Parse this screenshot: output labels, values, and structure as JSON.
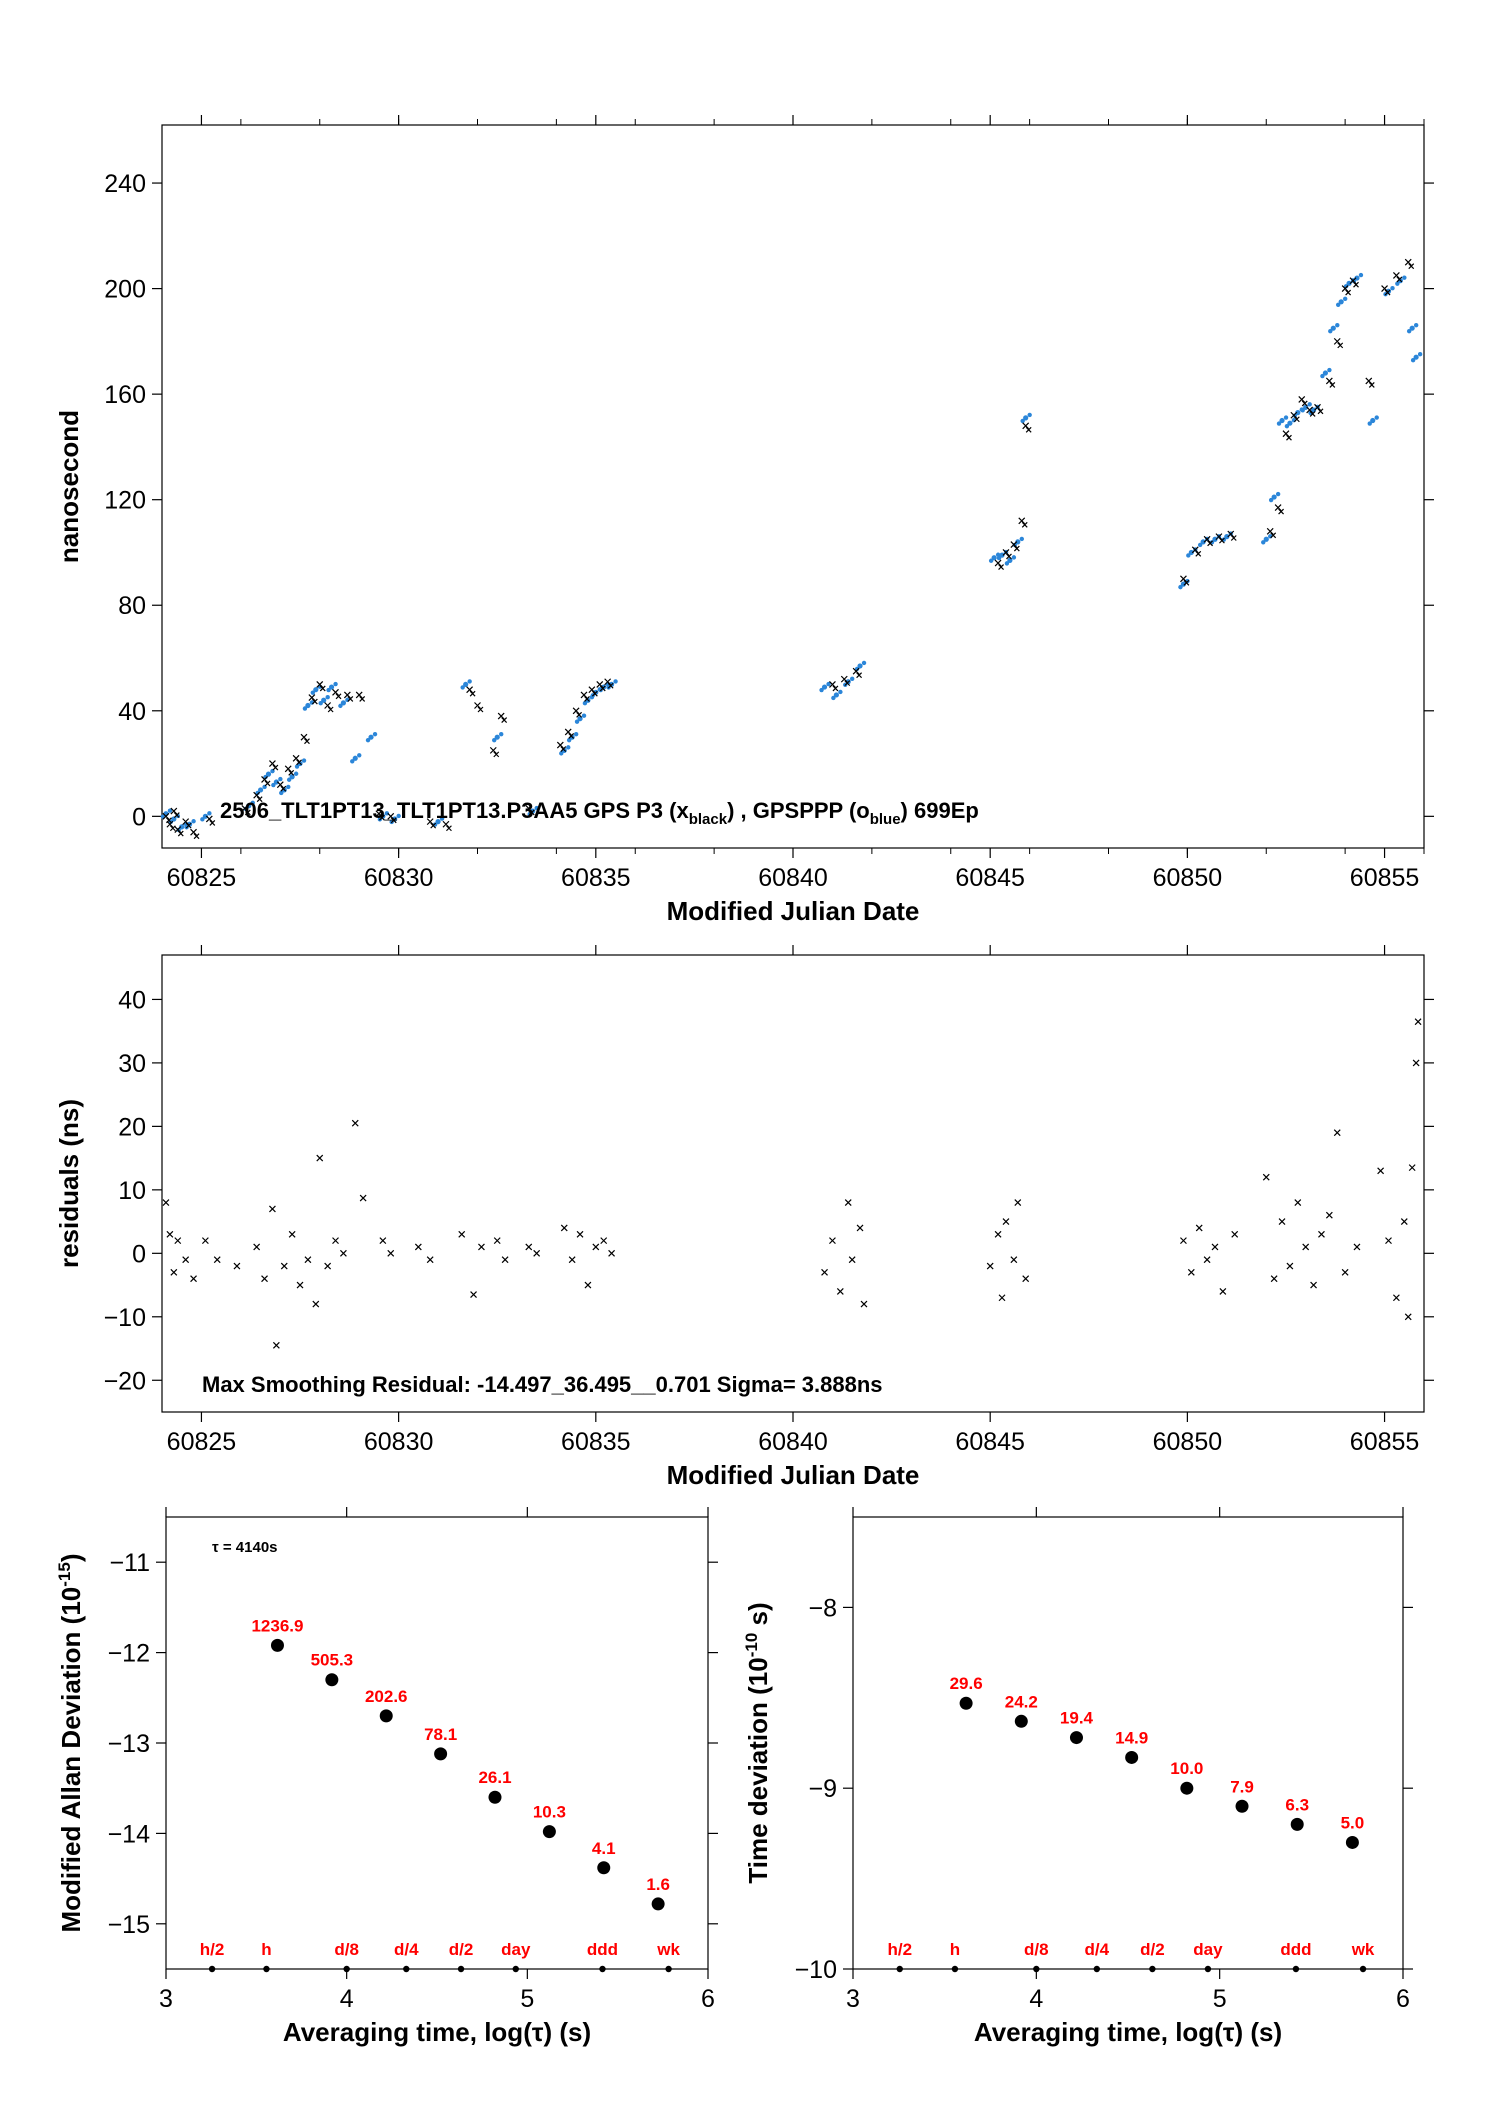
{
  "chart_data": [
    {
      "type": "scatter",
      "id": "top",
      "xlabel": "Modified Julian Date",
      "ylabel": "nanosecond",
      "xlim": [
        60824,
        60856
      ],
      "ylim": [
        -12,
        262
      ],
      "xticks": [
        60825,
        60830,
        60835,
        60840,
        60845,
        60850,
        60855
      ],
      "yticks": [
        0,
        40,
        80,
        120,
        160,
        200,
        240
      ],
      "annotation": {
        "prefix": "2506_TLT1PT13_TLT1PT13.P3AA5     GPS P3 (x",
        "sub1": "black",
        "mid": ") ,  GPSPPP (o",
        "sub2": "blue",
        "suffix": ")  699Ep"
      },
      "series": [
        {
          "name": "GPS P3",
          "marker": "x",
          "color": "#000000",
          "points": [
            [
              60824.1,
              0
            ],
            [
              60824.2,
              -3
            ],
            [
              60824.3,
              2
            ],
            [
              60824.4,
              -5
            ],
            [
              60824.6,
              -2
            ],
            [
              60824.8,
              -6
            ],
            [
              60825.2,
              -1
            ],
            [
              60826.1,
              3
            ],
            [
              60826.4,
              8
            ],
            [
              60826.6,
              14
            ],
            [
              60826.8,
              20
            ],
            [
              60827.0,
              12
            ],
            [
              60827.2,
              18
            ],
            [
              60827.4,
              22
            ],
            [
              60827.6,
              30
            ],
            [
              60827.8,
              45
            ],
            [
              60828.0,
              50
            ],
            [
              60828.2,
              42
            ],
            [
              60828.4,
              47
            ],
            [
              60828.7,
              46
            ],
            [
              60829.0,
              46
            ],
            [
              60829.5,
              1
            ],
            [
              60829.8,
              0
            ],
            [
              60830.8,
              -2
            ],
            [
              60831.2,
              -3
            ],
            [
              60831.8,
              48
            ],
            [
              60832.0,
              42
            ],
            [
              60832.4,
              25
            ],
            [
              60832.6,
              38
            ],
            [
              60833.3,
              3
            ],
            [
              60834.1,
              27
            ],
            [
              60834.3,
              32
            ],
            [
              60834.5,
              40
            ],
            [
              60834.7,
              46
            ],
            [
              60834.9,
              48
            ],
            [
              60835.1,
              50
            ],
            [
              60835.3,
              51
            ],
            [
              60841.0,
              50
            ],
            [
              60841.3,
              52
            ],
            [
              60841.6,
              55
            ],
            [
              60845.2,
              96
            ],
            [
              60845.4,
              100
            ],
            [
              60845.6,
              103
            ],
            [
              60845.8,
              112
            ],
            [
              60845.9,
              148
            ],
            [
              60849.9,
              90
            ],
            [
              60850.2,
              101
            ],
            [
              60850.5,
              105
            ],
            [
              60850.8,
              106
            ],
            [
              60851.1,
              107
            ],
            [
              60852.1,
              108
            ],
            [
              60852.3,
              117
            ],
            [
              60852.5,
              145
            ],
            [
              60852.7,
              152
            ],
            [
              60852.9,
              158
            ],
            [
              60853.1,
              154
            ],
            [
              60853.3,
              155
            ],
            [
              60853.6,
              165
            ],
            [
              60853.8,
              180
            ],
            [
              60854.0,
              200
            ],
            [
              60854.2,
              203
            ],
            [
              60854.6,
              165
            ],
            [
              60855.0,
              200
            ],
            [
              60855.3,
              205
            ],
            [
              60855.6,
              210
            ]
          ]
        },
        {
          "name": "GPSPPP",
          "marker": "o",
          "color": "#2b86d9",
          "points": [
            [
              60824.1,
              1
            ],
            [
              60824.3,
              -1
            ],
            [
              60824.5,
              -4
            ],
            [
              60824.7,
              -3
            ],
            [
              60825.1,
              0
            ],
            [
              60826.2,
              4
            ],
            [
              60826.5,
              10
            ],
            [
              60826.7,
              16
            ],
            [
              60826.9,
              13
            ],
            [
              60827.1,
              10
            ],
            [
              60827.3,
              15
            ],
            [
              60827.5,
              20
            ],
            [
              60827.7,
              42
            ],
            [
              60827.9,
              48
            ],
            [
              60828.1,
              44
            ],
            [
              60828.3,
              49
            ],
            [
              60828.6,
              43
            ],
            [
              60828.9,
              22
            ],
            [
              60829.3,
              30
            ],
            [
              60829.6,
              0
            ],
            [
              60829.9,
              -1
            ],
            [
              60831.0,
              -2
            ],
            [
              60831.7,
              50
            ],
            [
              60832.5,
              30
            ],
            [
              60833.4,
              2
            ],
            [
              60834.2,
              25
            ],
            [
              60834.4,
              30
            ],
            [
              60834.6,
              37
            ],
            [
              60834.8,
              44
            ],
            [
              60835.0,
              47
            ],
            [
              60835.2,
              49
            ],
            [
              60835.4,
              50
            ],
            [
              60840.8,
              49
            ],
            [
              60841.1,
              46
            ],
            [
              60841.4,
              51
            ],
            [
              60841.7,
              57
            ],
            [
              60845.1,
              98
            ],
            [
              60845.3,
              99
            ],
            [
              60845.5,
              97
            ],
            [
              60845.7,
              104
            ],
            [
              60845.9,
              151
            ],
            [
              60849.9,
              88
            ],
            [
              60850.1,
              100
            ],
            [
              60850.4,
              104
            ],
            [
              60850.7,
              105
            ],
            [
              60851.0,
              106
            ],
            [
              60852.0,
              105
            ],
            [
              60852.2,
              121
            ],
            [
              60852.4,
              150
            ],
            [
              60852.6,
              149
            ],
            [
              60852.8,
              153
            ],
            [
              60853.0,
              155
            ],
            [
              60853.2,
              154
            ],
            [
              60853.5,
              168
            ],
            [
              60853.7,
              185
            ],
            [
              60853.9,
              195
            ],
            [
              60854.1,
              202
            ],
            [
              60854.3,
              204
            ],
            [
              60854.7,
              150
            ],
            [
              60855.1,
              199
            ],
            [
              60855.4,
              203
            ],
            [
              60855.7,
              185
            ],
            [
              60855.8,
              174
            ]
          ]
        }
      ]
    },
    {
      "type": "scatter",
      "id": "middle",
      "xlabel": "Modified Julian Date",
      "ylabel": "residuals (ns)",
      "xlim": [
        60824,
        60856
      ],
      "ylim": [
        -25,
        47
      ],
      "xticks": [
        60825,
        60830,
        60835,
        60840,
        60845,
        60850,
        60855
      ],
      "yticks": [
        -20,
        -10,
        0,
        10,
        20,
        30,
        40
      ],
      "annotation": "Max Smoothing Residual: -14.497_36.495__0.701  Sigma= 3.888ns",
      "series": [
        {
          "name": "residuals",
          "marker": "x",
          "color": "#000000",
          "points": [
            [
              60824.1,
              8
            ],
            [
              60824.2,
              3
            ],
            [
              60824.3,
              -3
            ],
            [
              60824.4,
              2
            ],
            [
              60824.6,
              -1
            ],
            [
              60824.8,
              -4
            ],
            [
              60825.1,
              2
            ],
            [
              60825.4,
              -1
            ],
            [
              60825.9,
              -2
            ],
            [
              60826.4,
              1
            ],
            [
              60826.6,
              -4
            ],
            [
              60826.8,
              7
            ],
            [
              60826.9,
              -14.5
            ],
            [
              60827.1,
              -2
            ],
            [
              60827.3,
              3
            ],
            [
              60827.5,
              -5
            ],
            [
              60827.7,
              -1
            ],
            [
              60827.9,
              -8
            ],
            [
              60828.0,
              15
            ],
            [
              60828.2,
              -2
            ],
            [
              60828.4,
              2
            ],
            [
              60828.6,
              0
            ],
            [
              60828.9,
              20.5
            ],
            [
              60829.1,
              8.7
            ],
            [
              60829.6,
              2
            ],
            [
              60829.8,
              0
            ],
            [
              60830.5,
              1
            ],
            [
              60830.8,
              -1
            ],
            [
              60831.6,
              3
            ],
            [
              60831.9,
              -6.5
            ],
            [
              60832.1,
              1
            ],
            [
              60832.5,
              2
            ],
            [
              60832.7,
              -1
            ],
            [
              60833.3,
              1
            ],
            [
              60833.5,
              0
            ],
            [
              60834.2,
              4
            ],
            [
              60834.4,
              -1
            ],
            [
              60834.6,
              3
            ],
            [
              60834.8,
              -5
            ],
            [
              60835.0,
              1
            ],
            [
              60835.2,
              2
            ],
            [
              60835.4,
              0
            ],
            [
              60840.8,
              -3
            ],
            [
              60841.0,
              2
            ],
            [
              60841.2,
              -6
            ],
            [
              60841.4,
              8
            ],
            [
              60841.5,
              -1
            ],
            [
              60841.7,
              4
            ],
            [
              60841.8,
              -8
            ],
            [
              60845.0,
              -2
            ],
            [
              60845.2,
              3
            ],
            [
              60845.3,
              -7
            ],
            [
              60845.4,
              5
            ],
            [
              60845.6,
              -1
            ],
            [
              60845.7,
              8
            ],
            [
              60845.9,
              -4
            ],
            [
              60849.9,
              2
            ],
            [
              60850.1,
              -3
            ],
            [
              60850.3,
              4
            ],
            [
              60850.5,
              -1
            ],
            [
              60850.7,
              1
            ],
            [
              60850.9,
              -6
            ],
            [
              60851.2,
              3
            ],
            [
              60852.0,
              12
            ],
            [
              60852.2,
              -4
            ],
            [
              60852.4,
              5
            ],
            [
              60852.6,
              -2
            ],
            [
              60852.8,
              8
            ],
            [
              60853.0,
              1
            ],
            [
              60853.2,
              -5
            ],
            [
              60853.4,
              3
            ],
            [
              60853.6,
              6
            ],
            [
              60853.8,
              19
            ],
            [
              60854.0,
              -3
            ],
            [
              60854.3,
              1
            ],
            [
              60854.9,
              13
            ],
            [
              60855.1,
              2
            ],
            [
              60855.3,
              -7
            ],
            [
              60855.5,
              5
            ],
            [
              60855.6,
              -10
            ],
            [
              60855.7,
              13.5
            ],
            [
              60855.8,
              30
            ],
            [
              60855.85,
              36.5
            ]
          ]
        }
      ]
    },
    {
      "type": "scatter",
      "id": "allan",
      "xlabel": "Averaging time, log(τ) (s)",
      "ylabel": "Modified Allan Deviation (10",
      "ylabel_exp": "-15",
      "ylabel_end": ")",
      "xlim": [
        3,
        6
      ],
      "ylim": [
        -15.5,
        -10.5
      ],
      "xticks": [
        3,
        4,
        5,
        6
      ],
      "yticks": [
        -15,
        -14,
        -13,
        -12,
        -11
      ],
      "tau_label": "τ = 4140s",
      "points": [
        [
          3.617,
          -11.92
        ],
        [
          3.918,
          -12.3
        ],
        [
          4.219,
          -12.7
        ],
        [
          4.52,
          -13.12
        ],
        [
          4.821,
          -13.6
        ],
        [
          5.122,
          -13.98
        ],
        [
          5.423,
          -14.38
        ],
        [
          5.724,
          -14.78
        ]
      ],
      "point_labels": [
        "1236.9",
        "505.3",
        "202.6",
        "78.1",
        "26.1",
        "10.3",
        "4.1",
        "1.6"
      ],
      "marker_ticks": [
        3.255,
        3.556,
        4.0,
        4.33,
        4.633,
        4.936,
        5.416,
        5.782
      ],
      "marker_labels": [
        "h/2",
        "h",
        "d/8",
        "d/4",
        "d/2",
        "day",
        "ddd",
        "wk"
      ]
    },
    {
      "type": "scatter",
      "id": "tdev",
      "xlabel": "Averaging time, log(τ) (s)",
      "ylabel": "Time deviation (10",
      "ylabel_exp": "-10",
      "ylabel_end": " s)",
      "xlim": [
        3,
        6
      ],
      "ylim": [
        -10,
        -7.5
      ],
      "xticks": [
        3,
        4,
        5,
        6
      ],
      "yticks": [
        -10,
        -9,
        -8
      ],
      "points": [
        [
          3.617,
          -8.53
        ],
        [
          3.918,
          -8.63
        ],
        [
          4.219,
          -8.72
        ],
        [
          4.52,
          -8.83
        ],
        [
          4.821,
          -9.0
        ],
        [
          5.122,
          -9.1
        ],
        [
          5.423,
          -9.2
        ],
        [
          5.724,
          -9.3
        ]
      ],
      "point_labels": [
        "29.6",
        "24.2",
        "19.4",
        "14.9",
        "10.0",
        "7.9",
        "6.3",
        "5.0"
      ],
      "marker_ticks": [
        3.255,
        3.556,
        4.0,
        4.33,
        4.633,
        4.936,
        5.416,
        5.782
      ],
      "marker_labels": [
        "h/2",
        "h",
        "d/8",
        "d/4",
        "d/2",
        "day",
        "ddd",
        "wk"
      ]
    }
  ]
}
